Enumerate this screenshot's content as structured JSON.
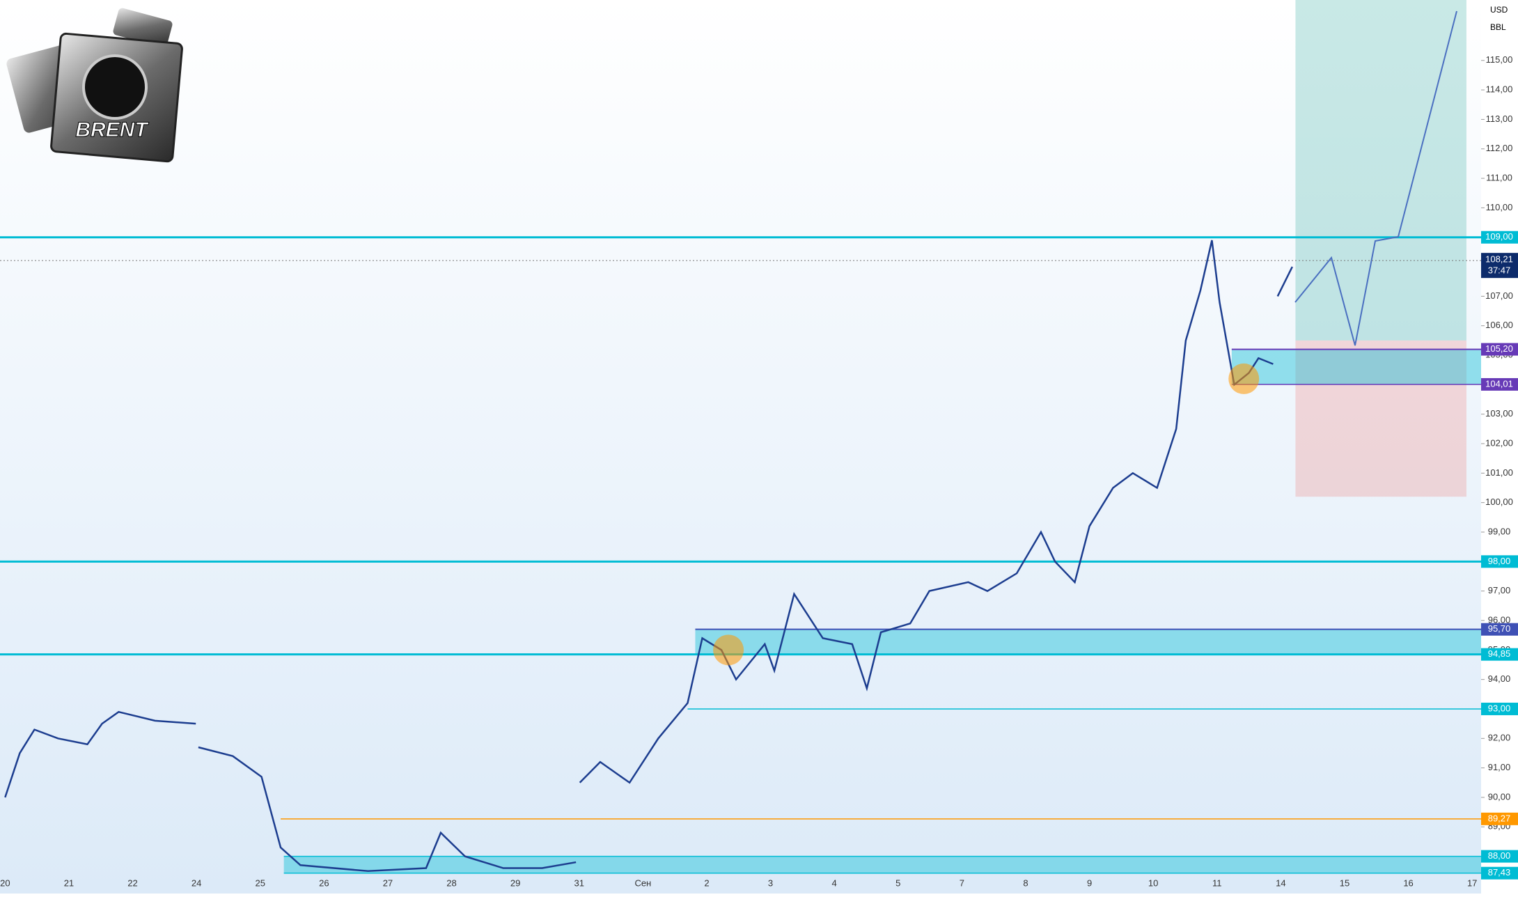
{
  "chart_data": {
    "type": "line",
    "logo_text": "BRENT",
    "currency": "USD",
    "unit": "BBL",
    "categories": [
      "20",
      "21",
      "22",
      "24",
      "25",
      "26",
      "27",
      "28",
      "29",
      "31",
      "Сен",
      "2",
      "3",
      "4",
      "5",
      "7",
      "8",
      "9",
      "10",
      "11",
      "14",
      "15",
      "16",
      "17"
    ],
    "x": [
      0,
      0.23,
      0.46,
      0.83,
      1.29,
      1.52,
      1.78,
      2.35,
      2.99,
      3.0,
      3.03,
      3.57,
      4.02,
      4.32,
      4.63,
      5.69,
      6.6,
      6.83,
      7.21,
      7.81,
      8.42,
      8.95,
      8.97,
      9.01,
      9.33,
      9.79,
      10.24,
      10.7,
      10.93,
      11.23,
      11.46,
      11.91,
      12.06,
      12.37,
      12.82,
      13.28,
      13.51,
      13.73,
      14.19,
      14.49,
      15.1,
      15.4,
      15.86,
      16.24,
      16.46,
      16.77,
      17.0,
      17.37,
      17.68,
      18.06,
      18.36,
      18.51,
      18.74,
      18.92,
      19.04,
      19.27,
      19.5,
      19.65,
      19.88,
      19.9,
      19.95,
      20.18
    ],
    "values": [
      90.0,
      91.5,
      92.3,
      92.0,
      91.8,
      92.5,
      92.9,
      92.6,
      92.5,
      null,
      91.7,
      91.4,
      90.7,
      88.3,
      87.7,
      87.5,
      87.6,
      88.8,
      88.0,
      87.6,
      87.6,
      87.8,
      null,
      90.5,
      91.2,
      90.5,
      92.0,
      93.2,
      95.4,
      95.0,
      94.0,
      95.2,
      94.3,
      96.9,
      95.4,
      95.2,
      93.7,
      95.6,
      95.9,
      97.0,
      97.3,
      97.0,
      97.6,
      99.0,
      98.0,
      97.3,
      99.2,
      100.5,
      101.0,
      100.5,
      102.5,
      105.5,
      107.2,
      108.9,
      106.8,
      104.0,
      104.4,
      104.9,
      104.7,
      null,
      107.0,
      108.0
    ],
    "color": "#1c3d8f",
    "xlim": [
      -0.08,
      23.14
    ],
    "ylim": [
      87.4,
      117.05
    ],
    "yticks": [
      {
        "value": 88,
        "label": "88,00"
      },
      {
        "value": 89,
        "label": "89,00"
      },
      {
        "value": 90,
        "label": "90,00"
      },
      {
        "value": 91,
        "label": "91,00"
      },
      {
        "value": 92,
        "label": "92,00"
      },
      {
        "value": 93,
        "label": "93,00"
      },
      {
        "value": 94,
        "label": "94,00"
      },
      {
        "value": 95,
        "label": "95,00"
      },
      {
        "value": 96,
        "label": "96,00"
      },
      {
        "value": 97,
        "label": "97,00"
      },
      {
        "value": 98,
        "label": "98,00"
      },
      {
        "value": 99,
        "label": "99,00"
      },
      {
        "value": 100,
        "label": "100,00"
      },
      {
        "value": 101,
        "label": "101,00"
      },
      {
        "value": 102,
        "label": "102,00"
      },
      {
        "value": 103,
        "label": "103,00"
      },
      {
        "value": 104,
        "label": "104,00"
      },
      {
        "value": 105,
        "label": "105,00"
      },
      {
        "value": 106,
        "label": "106,00"
      },
      {
        "value": 107,
        "label": "107,00"
      },
      {
        "value": 108,
        "label": "108,00"
      },
      {
        "value": 109,
        "label": "109,00"
      },
      {
        "value": 110,
        "label": "110,00"
      },
      {
        "value": 111,
        "label": "111,00"
      },
      {
        "value": 112,
        "label": "112,00"
      },
      {
        "value": 113,
        "label": "113,00"
      },
      {
        "value": 114,
        "label": "114,00"
      },
      {
        "value": 115,
        "label": "115,00"
      }
    ],
    "position": {
      "entry": 105.5,
      "target": 117.05,
      "stop": 100.2,
      "x": [
        20.23,
        22.91
      ]
    },
    "zones": [
      {
        "from": 94.85,
        "to": 95.7,
        "x0": 10.82
      },
      {
        "from": 87.43,
        "to": 88.0,
        "x0": 4.37
      },
      {
        "from": 104.01,
        "to": 105.2,
        "x0": 19.23
      }
    ],
    "levels": [
      {
        "value": 109,
        "label": "109,00",
        "color": "#00bcd4",
        "x0": -0.08,
        "width": 3
      },
      {
        "value": 98,
        "label": "98,00",
        "color": "#00bcd4",
        "x0": -0.08,
        "width": 3
      },
      {
        "value": 95.7,
        "label": "95,70",
        "color": "#3f51b5",
        "x0": 10.82,
        "width": 2
      },
      {
        "value": 94.85,
        "label": "94,85",
        "color": "#00bcd4",
        "x0": -0.08,
        "width": 3
      },
      {
        "value": 93,
        "label": "93,00",
        "color": "#00bcd4",
        "x0": 10.7,
        "width": 1.5
      },
      {
        "value": 89.27,
        "label": "89,27",
        "color": "#ff9800",
        "x0": 4.32,
        "width": 1.5
      },
      {
        "value": 88,
        "label": "88,00",
        "color": "#00bcd4",
        "x0": 4.37,
        "width": 1.5
      },
      {
        "value": 87.43,
        "label": "87,43",
        "color": "#00bcd4",
        "x0": 4.37,
        "width": 1.5
      },
      {
        "value": 105.2,
        "label": "105,20",
        "color": "#673ab7",
        "x0": 19.23,
        "width": 2
      },
      {
        "value": 104.01,
        "label": "104,01",
        "color": "#673ab7",
        "x0": 19.23,
        "width": 1.5
      }
    ],
    "price_marker": {
      "value": 108.21,
      "label": "108,21",
      "timer": "37:47",
      "color": "#0d2b6b"
    },
    "highlights": [
      {
        "x": 11.34,
        "y": 95.0
      },
      {
        "x": 19.42,
        "y": 104.2
      }
    ]
  }
}
